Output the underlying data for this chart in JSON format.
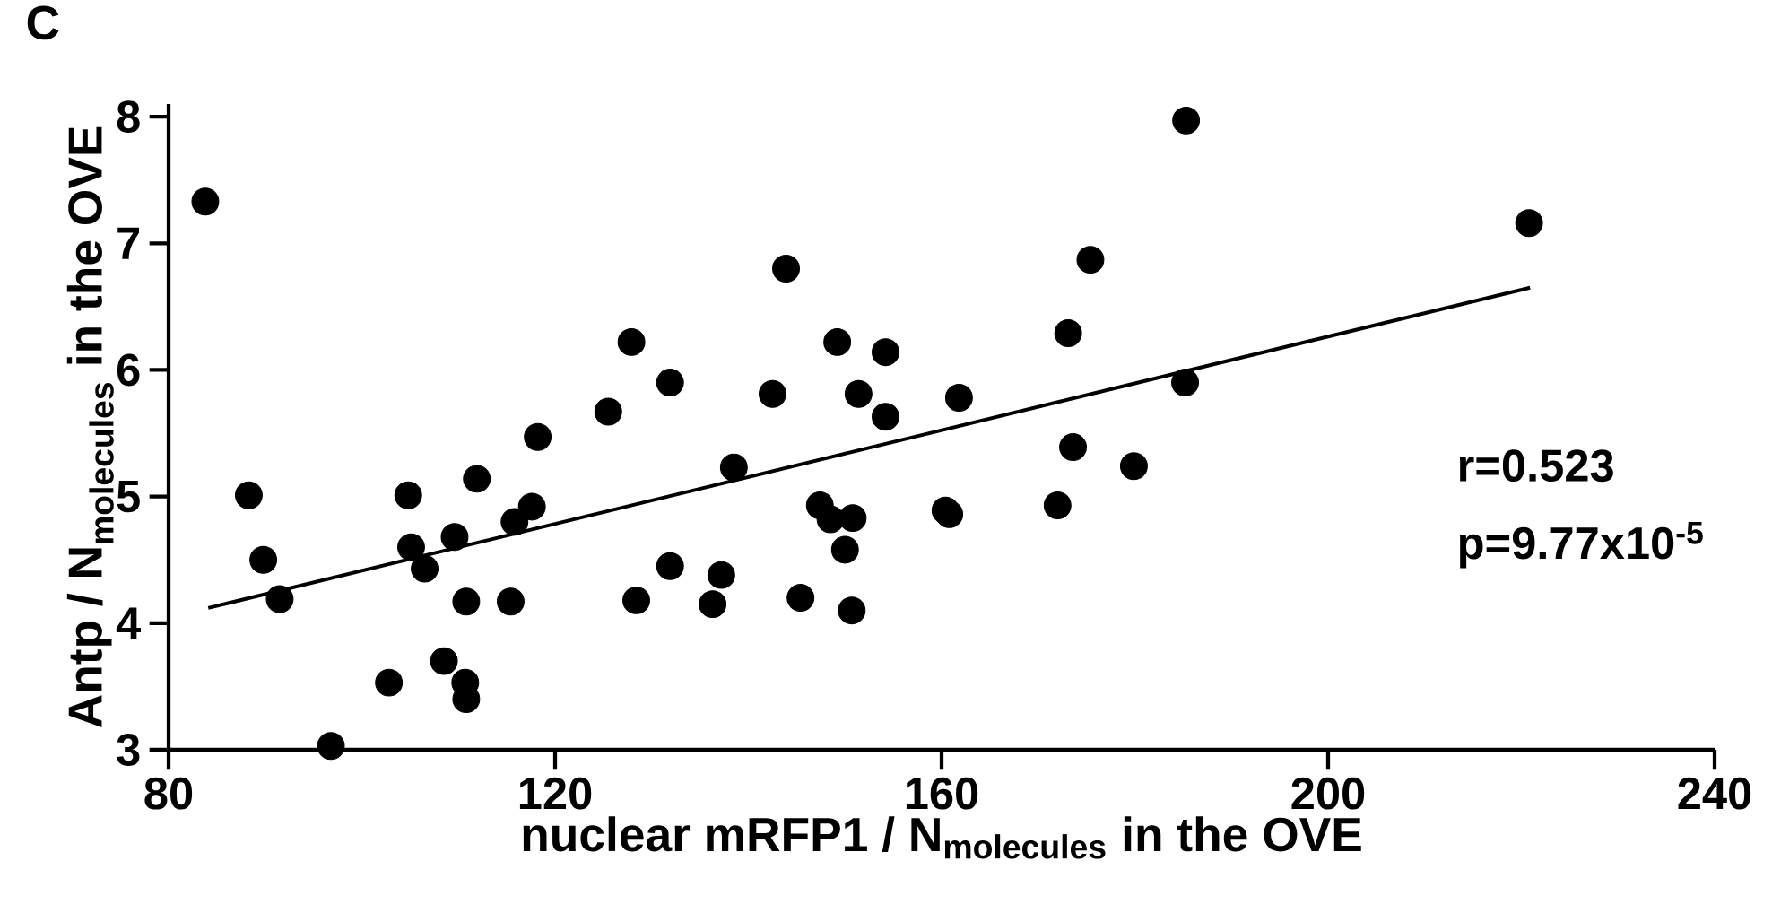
{
  "chart_data": {
    "type": "scatter",
    "title": "C",
    "xlabel": "\\text{\\bfseries nuclear mRFP1 / N}_{\\text{\\bfseries molecules}}\\text{\\bfseries\\ in the OVE}",
    "ylabel": "\\text{\\bfseries Antp / N}_{\\text{\\bfseries molecules}}\\text{\\bfseries\\ in the OVE}",
    "xlim": [
      80,
      240
    ],
    "xticks": [
      80,
      120,
      160,
      200,
      240
    ],
    "ylim": [
      3,
      8.1
    ],
    "yticks": [
      3,
      4,
      5,
      6,
      7,
      8
    ],
    "grid": false,
    "annotations": [
      "r=0.523",
      "p=9.77x10$^{-5}$"
    ],
    "series": [
      {
        "color": "#000000",
        "marker": "circle",
        "x": [
          83.8,
          88.3,
          89.8,
          91.5,
          96.8,
          102.8,
          104.8,
          105.1,
          106.5,
          108.5,
          109.6,
          110.7,
          110.8,
          110.8,
          111.9,
          115.4,
          115.8,
          117.6,
          118.2,
          125.5,
          127.9,
          128.4,
          131.9,
          131.9,
          138.5,
          137.2,
          136.3,
          143.9,
          142.5,
          145.4,
          147.4,
          148.5,
          150.8,
          150.0,
          150.7,
          149.2,
          151.4,
          154.2,
          154.2,
          160.4,
          160.8,
          161.8,
          172.0,
          173.1,
          173.6,
          175.4,
          179.9,
          185.2,
          185.3,
          220.8
        ],
        "values": [
          7.33,
          5.01,
          4.5,
          4.19,
          3.03,
          3.53,
          5.01,
          4.6,
          4.43,
          3.7,
          4.68,
          3.53,
          3.4,
          4.17,
          5.14,
          4.17,
          4.8,
          4.92,
          5.47,
          5.67,
          6.22,
          4.18,
          5.9,
          4.45,
          5.23,
          4.38,
          4.15,
          6.8,
          5.81,
          4.2,
          4.93,
          4.82,
          4.83,
          4.58,
          4.1,
          6.22,
          5.81,
          6.14,
          5.63,
          4.89,
          4.86,
          5.78,
          4.93,
          6.29,
          5.39,
          6.87,
          5.24,
          5.9,
          7.97,
          7.16
        ]
      },
      {
        "type": "line",
        "color": "#000000",
        "marker": "none",
        "line_style": "solid",
        "x": [
          84.1,
          220.9
        ],
        "values": [
          4.12,
          6.65
        ]
      }
    ]
  }
}
